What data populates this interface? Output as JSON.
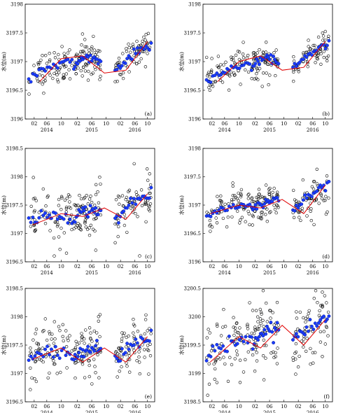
{
  "figure": {
    "ylabel": "水位(m)",
    "x_month_ticks": [
      "02",
      "06",
      "10",
      "02",
      "06",
      "10",
      "02",
      "06",
      "10"
    ],
    "x_year_labels": [
      "2014",
      "2015",
      "2016"
    ]
  },
  "chart_data": [
    {
      "type": "scatter",
      "panel": "(a)",
      "ylabel": "水位(m)",
      "ylim": [
        3196,
        3198
      ],
      "yticks": [
        3196,
        3196.5,
        3197,
        3197.5,
        3198
      ],
      "ytick_labels": [
        "3196",
        "3196.5",
        "3197",
        "3197.5",
        "3198"
      ],
      "xlim": [
        0,
        36
      ],
      "trend": {
        "x": [
          4,
          10,
          16,
          22,
          28,
          34
        ],
        "y": [
          3196.65,
          3197.05,
          3197.1,
          3196.8,
          3196.85,
          3197.35
        ]
      },
      "point_spread": 0.3,
      "series": [
        {
          "x_start": 1,
          "x_end": 13,
          "y_start": 3196.7,
          "y_end": 3197.0,
          "peak": 3197.05
        },
        {
          "x_start": 13.5,
          "x_end": 21,
          "y_start": 3196.9,
          "y_end": 3196.95,
          "peak": 3197.1
        },
        {
          "x_start": 25,
          "x_end": 35,
          "y_start": 3196.85,
          "y_end": 3197.3,
          "peak": 3197.35
        }
      ],
      "grid": false,
      "legend": "none"
    },
    {
      "type": "scatter",
      "panel": "(b)",
      "ylabel": "水位(m)",
      "ylim": [
        3196,
        3198
      ],
      "yticks": [
        3196,
        3196.5,
        3197,
        3197.5,
        3198
      ],
      "ytick_labels": [
        "3196",
        "3196.5",
        "3197",
        "3197.5",
        "3198"
      ],
      "xlim": [
        0,
        36
      ],
      "trend": {
        "x": [
          4,
          10,
          16,
          22,
          28,
          34
        ],
        "y": [
          3196.65,
          3197.0,
          3197.1,
          3196.85,
          3196.9,
          3197.35
        ]
      },
      "point_spread": 0.25,
      "series": [
        {
          "x_start": 1,
          "x_end": 13,
          "y_start": 3196.7,
          "y_end": 3197.0,
          "peak": 3197.0
        },
        {
          "x_start": 13.5,
          "x_end": 21,
          "y_start": 3196.9,
          "y_end": 3197.0,
          "peak": 3197.1
        },
        {
          "x_start": 25,
          "x_end": 35,
          "y_start": 3196.9,
          "y_end": 3197.3,
          "peak": 3197.35
        }
      ],
      "grid": false,
      "legend": "none"
    },
    {
      "type": "scatter",
      "panel": "(c)",
      "ylabel": "水位(m)",
      "ylim": [
        3196.5,
        3198.5
      ],
      "yticks": [
        3196.5,
        3197,
        3197.5,
        3198,
        3198.5
      ],
      "ytick_labels": [
        "3196.5",
        "3197",
        "3197.5",
        "3198",
        "3198.5"
      ],
      "xlim": [
        0,
        36
      ],
      "trend": {
        "x": [
          2,
          10,
          16,
          22,
          28,
          34
        ],
        "y": [
          3197.15,
          3197.35,
          3197.3,
          3197.45,
          3197.25,
          3197.7
        ]
      },
      "point_spread": 0.45,
      "series": [
        {
          "x_start": 1,
          "x_end": 13,
          "y_start": 3197.2,
          "y_end": 3197.3,
          "peak": 3197.35
        },
        {
          "x_start": 13.5,
          "x_end": 21,
          "y_start": 3197.3,
          "y_end": 3197.4,
          "peak": 3197.45
        },
        {
          "x_start": 25,
          "x_end": 35,
          "y_start": 3197.25,
          "y_end": 3197.7,
          "peak": 3197.75
        }
      ],
      "grid": false,
      "legend": "none"
    },
    {
      "type": "scatter",
      "panel": "(d)",
      "ylabel": "水位(m)",
      "ylim": [
        3196,
        3198
      ],
      "yticks": [
        3196,
        3196.5,
        3197,
        3197.5,
        3198
      ],
      "ytick_labels": [
        "3196",
        "3196.5",
        "3197",
        "3197.5",
        "3198"
      ],
      "xlim": [
        0,
        36
      ],
      "trend": {
        "x": [
          2,
          10,
          16,
          22,
          28,
          34
        ],
        "y": [
          3196.85,
          3197.0,
          3196.95,
          3197.1,
          3196.85,
          3197.35
        ]
      },
      "point_spread": 0.3,
      "series": [
        {
          "x_start": 1,
          "x_end": 13,
          "y_start": 3196.8,
          "y_end": 3197.0,
          "peak": 3197.05
        },
        {
          "x_start": 13.5,
          "x_end": 21,
          "y_start": 3196.9,
          "y_end": 3197.1,
          "peak": 3197.15
        },
        {
          "x_start": 25,
          "x_end": 35,
          "y_start": 3196.9,
          "y_end": 3197.35,
          "peak": 3197.4
        }
      ],
      "grid": false,
      "legend": "none"
    },
    {
      "type": "scatter",
      "panel": "(e)",
      "ylabel": "水位(m)",
      "ylim": [
        3196.5,
        3198.5
      ],
      "yticks": [
        3196.5,
        3197,
        3197.5,
        3198,
        3198.5
      ],
      "ytick_labels": [
        "3196.5",
        "3197",
        "3197.5",
        "3198",
        "3198.5"
      ],
      "xlim": [
        0,
        36
      ],
      "trend": {
        "x": [
          2,
          10,
          16,
          22,
          28,
          34
        ],
        "y": [
          3197.25,
          3197.45,
          3197.2,
          3197.45,
          3197.2,
          3197.65
        ]
      },
      "point_spread": 0.5,
      "series": [
        {
          "x_start": 1,
          "x_end": 13,
          "y_start": 3197.2,
          "y_end": 3197.35,
          "peak": 3197.45
        },
        {
          "x_start": 13.5,
          "x_end": 21,
          "y_start": 3197.25,
          "y_end": 3197.45,
          "peak": 3197.5
        },
        {
          "x_start": 25,
          "x_end": 35,
          "y_start": 3197.25,
          "y_end": 3197.7,
          "peak": 3197.75
        }
      ],
      "grid": false,
      "legend": "none"
    },
    {
      "type": "scatter",
      "panel": "(f)",
      "ylabel": "水位(m)",
      "ylim": [
        3198.5,
        3200.5
      ],
      "yticks": [
        3198.5,
        3199,
        3199.5,
        3200,
        3200.5
      ],
      "ytick_labels": [
        "3198.5",
        "3199",
        "3199.5",
        "3200",
        "3200.5"
      ],
      "xlim": [
        0,
        36
      ],
      "trend": {
        "x": [
          2,
          10,
          16,
          22,
          28,
          34
        ],
        "y": [
          3199.2,
          3199.65,
          3199.45,
          3199.85,
          3199.5,
          3199.95
        ]
      },
      "point_spread": 0.55,
      "series": [
        {
          "x_start": 1,
          "x_end": 13,
          "y_start": 3199.3,
          "y_end": 3199.6,
          "peak": 3199.65
        },
        {
          "x_start": 13.5,
          "x_end": 21,
          "y_start": 3199.6,
          "y_end": 3199.8,
          "peak": 3199.85
        },
        {
          "x_start": 25,
          "x_end": 35,
          "y_start": 3199.6,
          "y_end": 3199.95,
          "peak": 3200.0
        }
      ],
      "grid": false,
      "legend": "none"
    }
  ]
}
